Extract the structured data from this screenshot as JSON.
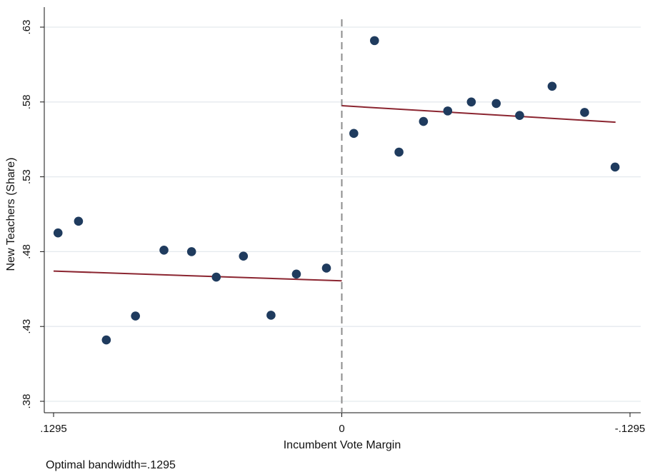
{
  "chart_data": {
    "type": "scatter",
    "xlabel": "Incumbent Vote Margin",
    "ylabel": "New Teachers (Share)",
    "note": "Optimal bandwidth=.1295",
    "xlim": [
      0.1295,
      -0.1295
    ],
    "ylim": [
      0.38,
      0.63
    ],
    "x_ticks": [
      {
        "value": 0.1295,
        "label": ".1295"
      },
      {
        "value": 0,
        "label": "0"
      },
      {
        "value": -0.1295,
        "label": "-.1295"
      }
    ],
    "y_ticks": [
      {
        "value": 0.38,
        "label": ".38"
      },
      {
        "value": 0.43,
        "label": ".43"
      },
      {
        "value": 0.48,
        "label": ".48"
      },
      {
        "value": 0.53,
        "label": ".53"
      },
      {
        "value": 0.58,
        "label": ".58"
      },
      {
        "value": 0.63,
        "label": ".63"
      }
    ],
    "grid": true,
    "cutoff": 0,
    "points": [
      {
        "x": 0.1275,
        "y": 0.4925
      },
      {
        "x": 0.1183,
        "y": 0.5003
      },
      {
        "x": 0.1058,
        "y": 0.421
      },
      {
        "x": 0.0927,
        "y": 0.437
      },
      {
        "x": 0.0799,
        "y": 0.481
      },
      {
        "x": 0.0675,
        "y": 0.48
      },
      {
        "x": 0.0564,
        "y": 0.463
      },
      {
        "x": 0.0442,
        "y": 0.477
      },
      {
        "x": 0.0318,
        "y": 0.4375
      },
      {
        "x": 0.0204,
        "y": 0.465
      },
      {
        "x": 0.0069,
        "y": 0.469
      },
      {
        "x": -0.0054,
        "y": 0.559
      },
      {
        "x": -0.0147,
        "y": 0.621
      },
      {
        "x": -0.0257,
        "y": 0.5465
      },
      {
        "x": -0.0367,
        "y": 0.567
      },
      {
        "x": -0.0476,
        "y": 0.574
      },
      {
        "x": -0.0582,
        "y": 0.58
      },
      {
        "x": -0.0694,
        "y": 0.579
      },
      {
        "x": -0.0799,
        "y": 0.571
      },
      {
        "x": -0.0945,
        "y": 0.5905
      },
      {
        "x": -0.1091,
        "y": 0.573
      },
      {
        "x": -0.1228,
        "y": 0.5365
      }
    ],
    "fit_lines": [
      {
        "x": [
          0.1295,
          0
        ],
        "y": [
          0.467,
          0.4605
        ]
      },
      {
        "x": [
          0,
          -0.123
        ],
        "y": [
          0.5775,
          0.5665
        ]
      }
    ],
    "colors": {
      "points": "#1f3b5e",
      "fit": "#8b2530",
      "cutoff": "#8c8c8c",
      "grid": "#e4e9ee",
      "axis": "#111111"
    }
  }
}
